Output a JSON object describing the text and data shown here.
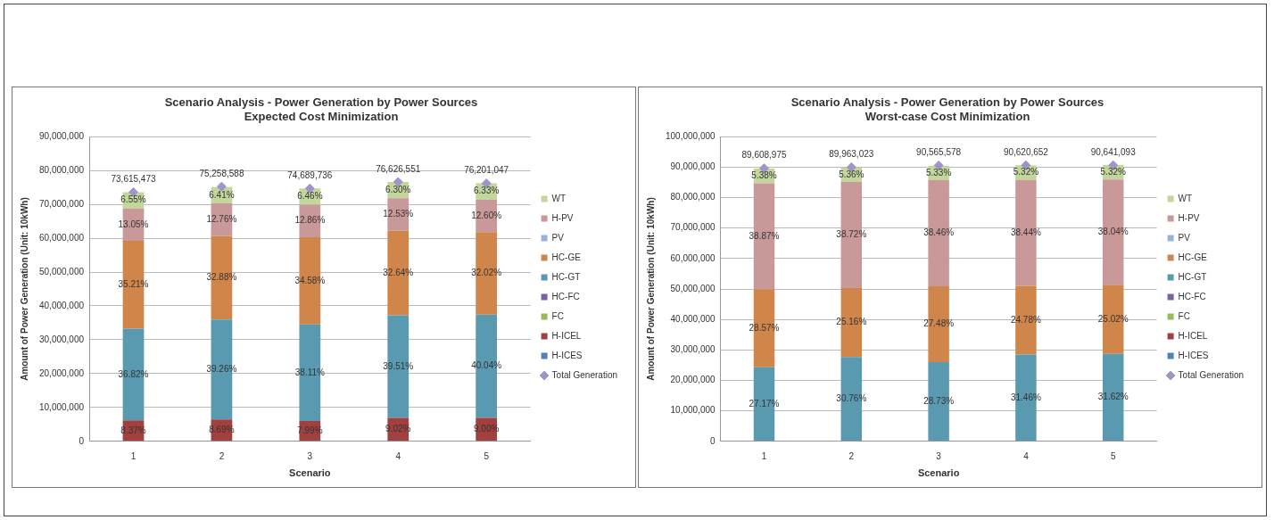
{
  "chart_data": [
    {
      "type": "bar",
      "title": "Scenario Analysis - Power Generation by Power Sources",
      "subtitle": "Expected Cost Minimization",
      "xlabel": "Scenario",
      "ylabel": "Amount of Power Generation (Unit: 10kWh)",
      "categories": [
        "1",
        "2",
        "3",
        "4",
        "5"
      ],
      "stacked": true,
      "legend": "right",
      "grid": "y",
      "ylim": [
        0,
        90000000
      ],
      "yticks": [
        {
          "value": 0,
          "label": "0"
        },
        {
          "value": 10000000,
          "label": "10,000,000"
        },
        {
          "value": 20000000,
          "label": "20,000,000"
        },
        {
          "value": 30000000,
          "label": "30,000,000"
        },
        {
          "value": 40000000,
          "label": "40,000,000"
        },
        {
          "value": 50000000,
          "label": "50,000,000"
        },
        {
          "value": 60000000,
          "label": "60,000,000"
        },
        {
          "value": 70000000,
          "label": "70,000,000"
        },
        {
          "value": 80000000,
          "label": "80,000,000"
        },
        {
          "value": 90000000,
          "label": "90,000,000"
        }
      ],
      "series": [
        {
          "name": "H-ICES",
          "color": "#4f81bd",
          "values": [
            null,
            null,
            null,
            null,
            null
          ]
        },
        {
          "name": "H-ICEL",
          "color": "#a0413f",
          "values": [
            6200000,
            6500000,
            6000000,
            6900000,
            6900000
          ]
        },
        {
          "name": "FC",
          "color": "#9bbb59",
          "values": [
            null,
            null,
            null,
            null,
            null
          ]
        },
        {
          "name": "HC-FC",
          "color": "#7a62a0",
          "values": [
            null,
            null,
            null,
            null,
            null
          ]
        },
        {
          "name": "HC-GT",
          "color": "#5a9ab0",
          "values": [
            27100000,
            29500000,
            28500000,
            30300000,
            30500000
          ]
        },
        {
          "name": "HC-GE",
          "color": "#d0864a",
          "values": [
            25900000,
            24700000,
            25800000,
            25000000,
            24400000
          ]
        },
        {
          "name": "PV",
          "color": "#95b3d7",
          "values": [
            null,
            null,
            null,
            null,
            null
          ]
        },
        {
          "name": "H-PV",
          "color": "#c9999a",
          "values": [
            9600000,
            9600000,
            9600000,
            9600000,
            9600000
          ]
        },
        {
          "name": "WT",
          "color": "#c3d69b",
          "values": [
            4800000,
            4800000,
            4800000,
            4800000,
            4800000
          ]
        },
        {
          "name": "Total Generation",
          "type": "scatter",
          "marker": "diamond",
          "color": "#a094c8",
          "x": [
            "1",
            "2",
            "3",
            "4",
            "5"
          ],
          "values": [
            73615473,
            75258588,
            74689736,
            76626551,
            76201047
          ],
          "value_labels": [
            "73,615,473",
            "75,258,588",
            "74,689,736",
            "76,626,551",
            "76,201,047"
          ]
        }
      ],
      "annotations": [
        "8.37%",
        "36.82%",
        "35.21%",
        "13.05%",
        "6.55%",
        "8.69%",
        "39.26%",
        "32.88%",
        "12.76%",
        "6.41%",
        "7.99%",
        "38.11%",
        "34.58%",
        "12.86%",
        "6.46%",
        "9.02%",
        "39.51%",
        "32.64%",
        "12.53%",
        "6.30%",
        "9.00%",
        "40.04%",
        "32.02%",
        "12.60%",
        "6.33%"
      ]
    },
    {
      "type": "bar",
      "title": "Scenario Analysis - Power Generation by Power Sources",
      "subtitle": "Worst-case Cost Minimization",
      "xlabel": "Scenario",
      "ylabel": "Amount of Power Generation (Unit: 10kWh)",
      "categories": [
        "1",
        "2",
        "3",
        "4",
        "5"
      ],
      "stacked": true,
      "legend": "right",
      "grid": "y",
      "ylim": [
        0,
        100000000
      ],
      "yticks": [
        {
          "value": 0,
          "label": "0"
        },
        {
          "value": 10000000,
          "label": "10,000,000"
        },
        {
          "value": 20000000,
          "label": "20,000,000"
        },
        {
          "value": 30000000,
          "label": "30,000,000"
        },
        {
          "value": 40000000,
          "label": "40,000,000"
        },
        {
          "value": 50000000,
          "label": "50,000,000"
        },
        {
          "value": 60000000,
          "label": "60,000,000"
        },
        {
          "value": 70000000,
          "label": "70,000,000"
        },
        {
          "value": 80000000,
          "label": "80,000,000"
        },
        {
          "value": 90000000,
          "label": "90,000,000"
        },
        {
          "value": 100000000,
          "label": "100,000,000"
        }
      ],
      "series": [
        {
          "name": "H-ICES",
          "color": "#4f81bd",
          "values": [
            null,
            null,
            null,
            null,
            null
          ]
        },
        {
          "name": "H-ICEL",
          "color": "#a0413f",
          "values": [
            null,
            null,
            null,
            null,
            null
          ]
        },
        {
          "name": "FC",
          "color": "#9bbb59",
          "values": [
            null,
            null,
            null,
            null,
            null
          ]
        },
        {
          "name": "HC-FC",
          "color": "#7a62a0",
          "values": [
            null,
            null,
            null,
            null,
            null
          ]
        },
        {
          "name": "HC-GT",
          "color": "#5a9ab0",
          "values": [
            24300000,
            27700000,
            26000000,
            28500000,
            28700000
          ]
        },
        {
          "name": "HC-GE",
          "color": "#d0864a",
          "values": [
            25600000,
            22600000,
            24900000,
            22500000,
            22700000
          ]
        },
        {
          "name": "PV",
          "color": "#95b3d7",
          "values": [
            null,
            null,
            null,
            null,
            null
          ]
        },
        {
          "name": "H-PV",
          "color": "#c9999a",
          "values": [
            34800000,
            34800000,
            34800000,
            34800000,
            34500000
          ]
        },
        {
          "name": "WT",
          "color": "#c3d69b",
          "values": [
            4800000,
            4800000,
            4800000,
            4800000,
            4800000
          ]
        },
        {
          "name": "Total Generation",
          "type": "scatter",
          "marker": "diamond",
          "color": "#a094c8",
          "x": [
            "1",
            "2",
            "3",
            "4",
            "5"
          ],
          "values": [
            89608975,
            89963023,
            90565578,
            90620652,
            90641093
          ],
          "value_labels": [
            "89,608,975",
            "89,963,023",
            "90,565,578",
            "90,620,652",
            "90,641,093"
          ]
        }
      ],
      "annotations": [
        "27.17%",
        "28.57%",
        "38.87%",
        "5.38%",
        "30.76%",
        "25.16%",
        "38.72%",
        "5.36%",
        "28.73%",
        "27.48%",
        "38.46%",
        "5.33%",
        "31.46%",
        "24.78%",
        "38.44%",
        "5.32%",
        "31.62%",
        "25.02%",
        "38.04%",
        "5.32%"
      ]
    }
  ]
}
